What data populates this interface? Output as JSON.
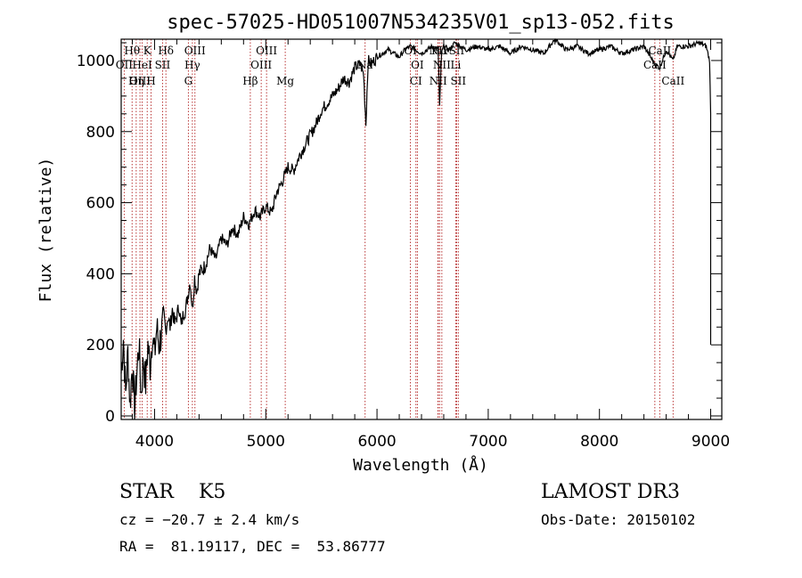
{
  "chart_data": {
    "type": "line",
    "title": "spec-57025-HD051007N534235V01_sp13-052.fits",
    "xlabel": "Wavelength (Å)",
    "ylabel": "Flux (relative)",
    "xlim": [
      3700,
      9100
    ],
    "ylim": [
      -10,
      1060
    ],
    "x_ticks": [
      4000,
      5000,
      6000,
      7000,
      8000,
      9000
    ],
    "y_ticks": [
      0,
      200,
      400,
      600,
      800,
      1000
    ],
    "series": [
      {
        "name": "flux",
        "x": [
          3700,
          3720,
          3740,
          3760,
          3780,
          3800,
          3820,
          3840,
          3860,
          3880,
          3900,
          3920,
          3940,
          3960,
          3980,
          4000,
          4020,
          4040,
          4060,
          4080,
          4100,
          4120,
          4140,
          4160,
          4180,
          4200,
          4220,
          4240,
          4260,
          4280,
          4300,
          4320,
          4340,
          4360,
          4380,
          4400,
          4450,
          4500,
          4550,
          4600,
          4650,
          4700,
          4750,
          4800,
          4850,
          4900,
          4950,
          5000,
          5050,
          5100,
          5150,
          5200,
          5250,
          5300,
          5350,
          5400,
          5450,
          5500,
          5550,
          5600,
          5650,
          5700,
          5750,
          5800,
          5850,
          5880,
          5900,
          5920,
          5950,
          6000,
          6050,
          6100,
          6150,
          6200,
          6250,
          6300,
          6350,
          6400,
          6450,
          6500,
          6550,
          6563,
          6580,
          6600,
          6650,
          6700,
          6750,
          6800,
          6900,
          7000,
          7100,
          7200,
          7300,
          7400,
          7500,
          7600,
          7700,
          7800,
          7900,
          8000,
          8100,
          8200,
          8300,
          8400,
          8498,
          8542,
          8600,
          8662,
          8700,
          8800,
          8900,
          8960,
          8990,
          9000
        ],
        "y": [
          120,
          220,
          60,
          180,
          30,
          150,
          10,
          120,
          200,
          60,
          160,
          90,
          200,
          140,
          230,
          170,
          250,
          200,
          230,
          260,
          240,
          280,
          250,
          300,
          260,
          280,
          310,
          250,
          290,
          300,
          340,
          380,
          300,
          390,
          350,
          400,
          420,
          470,
          440,
          500,
          480,
          530,
          510,
          560,
          540,
          580,
          560,
          590,
          570,
          630,
          660,
          700,
          690,
          730,
          760,
          790,
          820,
          860,
          880,
          900,
          920,
          950,
          940,
          980,
          990,
          960,
          820,
          1000,
          990,
          1010,
          1020,
          1030,
          1020,
          1010,
          1030,
          1040,
          1030,
          1020,
          1030,
          1040,
          1030,
          870,
          1020,
          1040,
          1030,
          1050,
          1040,
          1030,
          1040,
          1030,
          1040,
          1020,
          1040,
          1030,
          1020,
          1060,
          1030,
          1040,
          1020,
          1030,
          1040,
          1020,
          1030,
          1040,
          990,
          980,
          1030,
          1000,
          1040,
          1040,
          1050,
          1040,
          1000,
          850
        ]
      }
    ],
    "spectral_lines": [
      {
        "name": "Hθ",
        "wavelength": 3798,
        "row": 1
      },
      {
        "name": "OII",
        "wavelength": 3727,
        "row": 2
      },
      {
        "name": "OIII",
        "wavelength": 3869,
        "row": 3
      },
      {
        "name": "Hη",
        "wavelength": 3835,
        "row": 3
      },
      {
        "name": "K",
        "wavelength": 3934,
        "row": 1
      },
      {
        "name": "HeI",
        "wavelength": 3889,
        "row": 2
      },
      {
        "name": "H",
        "wavelength": 3968,
        "row": 3
      },
      {
        "name": "Hδ",
        "wavelength": 4102,
        "row": 1
      },
      {
        "name": "SII",
        "wavelength": 4072,
        "row": 2
      },
      {
        "name": "OIII",
        "wavelength": 4363,
        "row": 1
      },
      {
        "name": "Hγ",
        "wavelength": 4340,
        "row": 2
      },
      {
        "name": "G",
        "wavelength": 4304,
        "row": 3
      },
      {
        "name": "Hβ",
        "wavelength": 4861,
        "row": 3
      },
      {
        "name": "OIII",
        "wavelength": 5007,
        "row": 1
      },
      {
        "name": "OIII",
        "wavelength": 4959,
        "row": 2
      },
      {
        "name": "Mg",
        "wavelength": 5175,
        "row": 3
      },
      {
        "name": "Na",
        "wavelength": 5893,
        "row": 2
      },
      {
        "name": "OI",
        "wavelength": 6300,
        "row": 1
      },
      {
        "name": "OI",
        "wavelength": 6363,
        "row": 2
      },
      {
        "name": "CI",
        "wavelength": 6350,
        "row": 3
      },
      {
        "name": "NII",
        "wavelength": 6548,
        "row": 1
      },
      {
        "name": "Hα",
        "wavelength": 6563,
        "row": 1
      },
      {
        "name": "NII",
        "wavelength": 6583,
        "row": 2
      },
      {
        "name": "NII",
        "wavelength": 6550,
        "row": 3
      },
      {
        "name": "SII",
        "wavelength": 6716,
        "row": 1
      },
      {
        "name": "Li",
        "wavelength": 6708,
        "row": 2
      },
      {
        "name": "SII",
        "wavelength": 6731,
        "row": 3
      },
      {
        "name": "CaII",
        "wavelength": 8542,
        "row": 1
      },
      {
        "name": "CaII",
        "wavelength": 8498,
        "row": 2
      },
      {
        "name": "CaII",
        "wavelength": 8662,
        "row": 3
      }
    ]
  },
  "info": {
    "class": "STAR    K5",
    "survey": "LAMOST DR3",
    "redshift": "cz = −20.7 ± 2.4 km/s",
    "obs_date": "Obs-Date: 20150102",
    "coords": "RA =  81.19117, DEC =  53.86777"
  },
  "colors": {
    "line_marker": "#b22222",
    "spectrum": "#000000"
  }
}
